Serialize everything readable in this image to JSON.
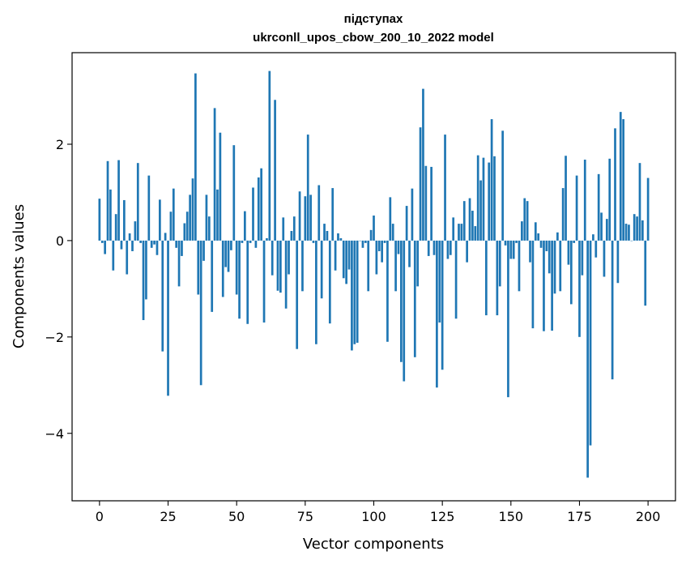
{
  "chart_data": {
    "type": "bar",
    "title": "підступах",
    "subtitle": "ukrconll_upos_cbow_200_10_2022 model",
    "xlabel": "Vector components",
    "ylabel": "Components values",
    "xlim": [
      -10,
      210
    ],
    "ylim": [
      -5.4,
      3.9
    ],
    "xticks": [
      0,
      25,
      50,
      75,
      100,
      125,
      150,
      175,
      200
    ],
    "yticks": [
      -4,
      -2,
      0,
      2
    ],
    "ytick_labels": [
      "−4",
      "−2",
      "0",
      "2"
    ],
    "grid": false,
    "bar_color": "#1f77b4",
    "series": [
      {
        "values": [
          0.87,
          -0.05,
          -0.28,
          1.65,
          1.06,
          -0.62,
          0.55,
          1.67,
          -0.18,
          0.84,
          -0.7,
          0.15,
          -0.22,
          0.4,
          1.61,
          -0.05,
          -1.65,
          -1.22,
          1.35,
          -0.15,
          -0.08,
          -0.3,
          0.85,
          -2.3,
          0.16,
          -3.22,
          0.6,
          1.08,
          -0.15,
          -0.95,
          -0.32,
          0.36,
          0.6,
          0.95,
          1.29,
          3.47,
          -1.12,
          -3.0,
          -0.42,
          0.95,
          0.5,
          -1.48,
          2.75,
          1.06,
          2.24,
          -1.17,
          -0.55,
          -0.65,
          -0.2,
          1.98,
          -1.12,
          -1.62,
          -0.05,
          0.61,
          -1.73,
          -0.05,
          1.1,
          -0.15,
          1.31,
          1.5,
          -1.7,
          0.05,
          3.52,
          -0.72,
          2.92,
          -1.04,
          -1.08,
          0.48,
          -1.41,
          -0.7,
          0.2,
          0.5,
          -2.25,
          1.02,
          -1.05,
          0.92,
          2.2,
          0.95,
          -0.05,
          -2.15,
          1.15,
          -1.2,
          0.35,
          0.2,
          -1.72,
          1.09,
          -0.62,
          0.15,
          0.05,
          -0.78,
          -0.9,
          -0.6,
          -2.28,
          -2.15,
          -2.12,
          0.0,
          -0.15,
          -0.05,
          -1.05,
          0.22,
          0.52,
          -0.7,
          -0.22,
          -0.45,
          -0.05,
          -2.1,
          0.9,
          0.35,
          -1.05,
          -0.28,
          -2.52,
          -2.92,
          0.72,
          -0.55,
          1.08,
          -2.42,
          -0.95,
          2.35,
          3.15,
          1.55,
          -0.32,
          1.53,
          -0.3,
          -3.05,
          -1.7,
          -2.68,
          2.2,
          -0.38,
          -0.3,
          0.48,
          -1.62,
          0.35,
          0.35,
          0.82,
          -0.45,
          0.88,
          0.62,
          0.3,
          1.77,
          1.25,
          1.72,
          -1.55,
          1.62,
          2.52,
          1.75,
          -1.55,
          -0.95,
          2.28,
          -0.1,
          -3.25,
          -0.38,
          -0.38,
          -0.05,
          -1.05,
          0.4,
          0.88,
          0.82,
          -0.45,
          -1.82,
          0.38,
          0.15,
          -0.15,
          -1.88,
          -0.22,
          -0.68,
          -1.87,
          -1.1,
          0.17,
          -1.05,
          1.09,
          1.76,
          -0.5,
          -1.32,
          -0.05,
          1.35,
          -2.0,
          -0.72,
          1.68,
          -4.92,
          -4.25,
          0.13,
          -0.35,
          1.38,
          0.58,
          -0.75,
          0.45,
          1.7,
          -2.88,
          2.33,
          -0.88,
          2.67,
          2.52,
          0.35,
          0.33,
          0.0,
          0.55,
          0.5,
          1.61,
          0.42,
          -1.35,
          1.3
        ]
      }
    ]
  }
}
